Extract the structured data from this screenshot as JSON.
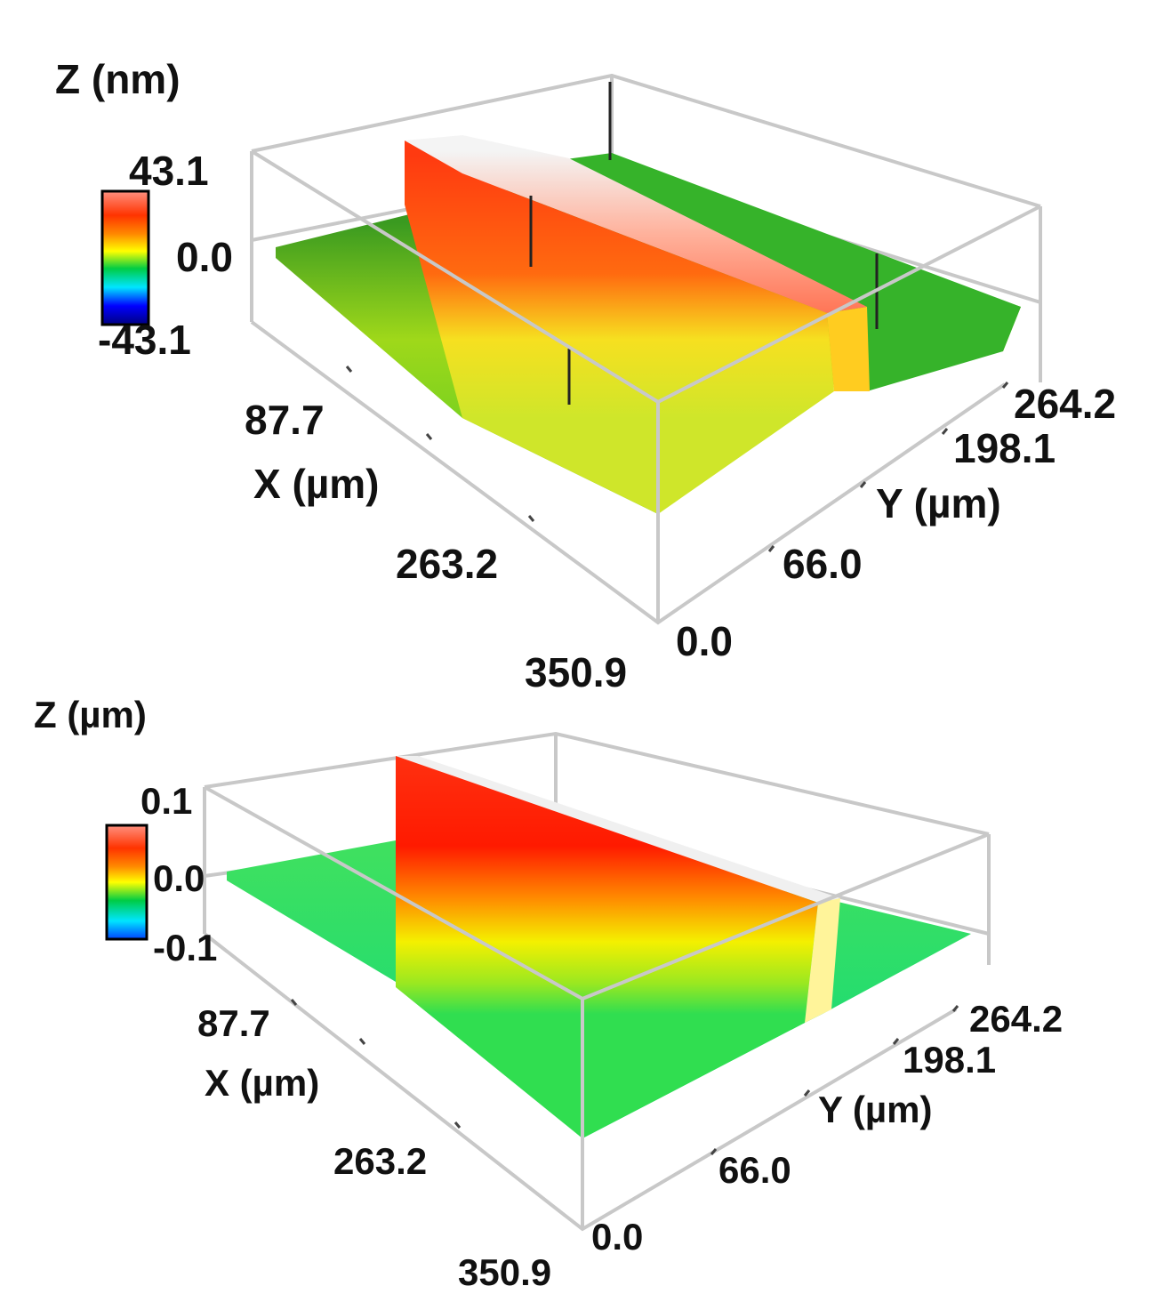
{
  "chart_data": [
    {
      "type": "surface3d",
      "z_label": "Z (nm)",
      "x_label": "X (µm)",
      "y_label": "Y (µm)",
      "x_ticks": [
        "87.7",
        "263.2",
        "350.9"
      ],
      "y_ticks": [
        "0.0",
        "66.0",
        "198.1",
        "264.2"
      ],
      "colorbar_ticks": [
        "43.1",
        "0.0",
        "-43.1"
      ],
      "z_range": [
        -43.1,
        43.1
      ],
      "x_range": [
        0,
        350.9
      ],
      "y_range": [
        0,
        264.2
      ],
      "colorbar": [
        "#000080",
        "#0000ff",
        "#00e5ff",
        "#00cc44",
        "#ffff00",
        "#ff8800",
        "#ff3300",
        "#ff9080"
      ],
      "feature": "raised stripe along X",
      "base_color": "#44b820",
      "stripe_color": "#ff4a14"
    },
    {
      "type": "surface3d",
      "z_label": "Z (µm)",
      "x_label": "X (µm)",
      "y_label": "Y (µm)",
      "x_ticks": [
        "87.7",
        "263.2",
        "350.9"
      ],
      "y_ticks": [
        "0.0",
        "66.0",
        "198.1",
        "264.2"
      ],
      "colorbar_ticks": [
        "0.1",
        "0.0",
        "-0.1"
      ],
      "z_range": [
        -0.1,
        0.1
      ],
      "x_range": [
        0,
        350.9
      ],
      "y_range": [
        0,
        264.2
      ],
      "colorbar": [
        "#0000ff",
        "#00e5ff",
        "#00cc44",
        "#ffff00",
        "#ff8800",
        "#ff3300",
        "#ff9080"
      ],
      "feature": "raised stripe along X",
      "base_color": "#22d85a",
      "stripe_color": "#ff2200"
    }
  ]
}
